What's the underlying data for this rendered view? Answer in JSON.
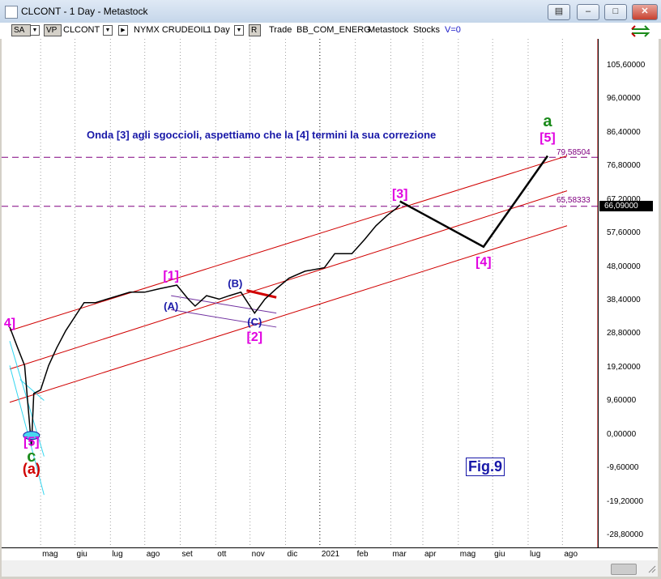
{
  "window": {
    "title": "CLCONT - 1 Day - Metastock"
  },
  "toolbar": {
    "sa_label": "SA",
    "vp_label": "VP",
    "symbol": "CLCONT",
    "exchange": "NYMX CRUDEOIL",
    "period": "1 Day",
    "r_label": "R",
    "trade_label": "Trade",
    "group": "BB_COM_ENERG",
    "app": "Metastock",
    "type": "Stocks",
    "version": "V=0"
  },
  "chart": {
    "annotation": "Onda [3] agli sgoccioli, aspettiamo che la [4] termini la sua correzione",
    "figure_label": "Fig.9",
    "level_high": "79,58504",
    "level_mid": "65,58333",
    "last_price": "66,09000",
    "colors": {
      "channel": "#d00000",
      "wave_pink": "#e000e0",
      "wave_blue": "#1818a8",
      "wave_green": "#1a8a1a",
      "wave_red": "#d00000",
      "dashed_level": "#800080",
      "cyan_channel": "#33d6f0",
      "projection": "#000000"
    }
  },
  "chart_data": {
    "type": "line",
    "title": "CLCONT - 1 Day",
    "price_ticks": [
      "105,60000",
      "96,00000",
      "86,40000",
      "76,80000",
      "67,20000",
      "57,60000",
      "48,00000",
      "38,40000",
      "28,80000",
      "19,20000",
      "9,60000",
      "0,00000",
      "-9,60000",
      "-19,20000",
      "-28,80000"
    ],
    "date_ticks": [
      "mag",
      "giu",
      "lug",
      "ago",
      "set",
      "ott",
      "nov",
      "dic",
      "2021",
      "feb",
      "mar",
      "apr",
      "mag",
      "giu",
      "lug",
      "ago"
    ],
    "horizontal_levels": [
      79.58504,
      65.58333
    ],
    "last_price": 66.09,
    "wave_labels": [
      {
        "text": "4]",
        "date": "2020-04-01",
        "price": 31
      },
      {
        "text": "[5]",
        "date": "2020-04-20",
        "price": -3
      },
      {
        "text": "c",
        "date": "2020-04-20",
        "price": -7.5
      },
      {
        "text": "(a)",
        "date": "2020-04-20",
        "price": -11
      },
      {
        "text": "[1]",
        "date": "2020-08-20",
        "price": 44.5
      },
      {
        "text": "(A)",
        "date": "2020-08-20",
        "price": 36
      },
      {
        "text": "(B)",
        "date": "2020-10-15",
        "price": 42.5
      },
      {
        "text": "(C)",
        "date": "2020-11-01",
        "price": 31.5
      },
      {
        "text": "[2]",
        "date": "2020-11-01",
        "price": 27
      },
      {
        "text": "[3]",
        "date": "2021-03-08",
        "price": 68
      },
      {
        "text": "[4]",
        "date": "2021-05-20",
        "price": 48.5
      },
      {
        "text": "[5]",
        "date": "2021-07-15",
        "price": 84
      },
      {
        "text": "a",
        "date": "2021-07-15",
        "price": 88.5
      }
    ],
    "projection": [
      {
        "date": "2021-03-08",
        "price": 67
      },
      {
        "date": "2021-05-20",
        "price": 54
      },
      {
        "date": "2021-07-15",
        "price": 80
      }
    ]
  }
}
